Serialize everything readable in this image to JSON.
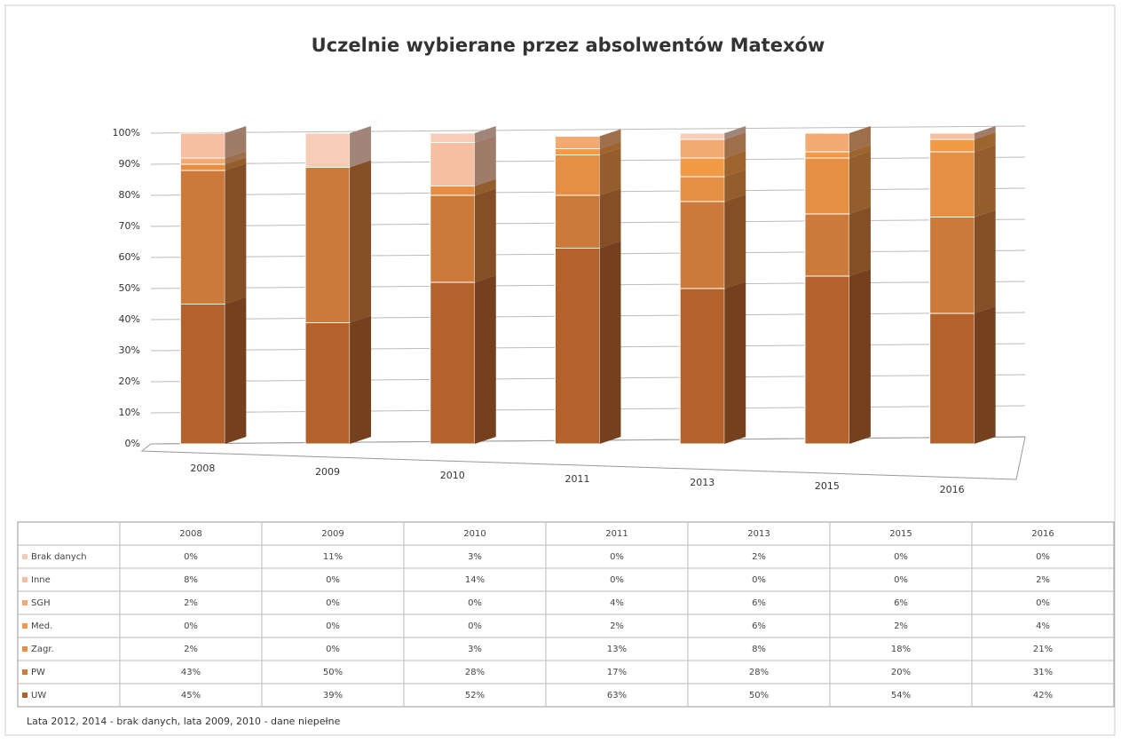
{
  "chart_data": {
    "type": "bar",
    "stacked": true,
    "title": "Uczelnie wybierane przez absolwentów Matexów",
    "categories": [
      "2008",
      "2009",
      "2010",
      "2011",
      "2013",
      "2015",
      "2016"
    ],
    "series": [
      {
        "name": "UW",
        "color": "#b4622c",
        "values": [
          45,
          39,
          52,
          63,
          50,
          54,
          42
        ],
        "value_labels": [
          "45%",
          "39%",
          "52%",
          "63%",
          "50%",
          "54%",
          "42%"
        ]
      },
      {
        "name": "PW",
        "color": "#cb7a3a",
        "values": [
          43,
          50,
          28,
          17,
          28,
          20,
          31
        ],
        "value_labels": [
          "43%",
          "50%",
          "28%",
          "17%",
          "28%",
          "20%",
          "31%"
        ]
      },
      {
        "name": "Zagr.",
        "color": "#e48f43",
        "values": [
          2,
          0,
          3,
          13,
          8,
          18,
          21
        ],
        "value_labels": [
          "2%",
          "0%",
          "3%",
          "13%",
          "8%",
          "18%",
          "21%"
        ]
      },
      {
        "name": "Med.",
        "color": "#f29a45",
        "values": [
          0,
          0,
          0,
          2,
          6,
          2,
          4
        ],
        "value_labels": [
          "0%",
          "0%",
          "0%",
          "2%",
          "6%",
          "2%",
          "4%"
        ]
      },
      {
        "name": "SGH",
        "color": "#f3aa72",
        "values": [
          2,
          0,
          0,
          4,
          6,
          6,
          0
        ],
        "value_labels": [
          "2%",
          "0%",
          "0%",
          "4%",
          "6%",
          "6%",
          "0%"
        ]
      },
      {
        "name": "Inne",
        "color": "#f5bfa2",
        "values": [
          8,
          0,
          14,
          0,
          0,
          0,
          2
        ],
        "value_labels": [
          "8%",
          "0%",
          "14%",
          "0%",
          "0%",
          "0%",
          "2%"
        ]
      },
      {
        "name": "Brak danych",
        "color": "#f7cdb8",
        "values": [
          0,
          11,
          3,
          0,
          2,
          0,
          0
        ],
        "value_labels": [
          "0%",
          "11%",
          "3%",
          "0%",
          "2%",
          "0%",
          "0%"
        ]
      }
    ],
    "ylim": [
      0,
      100
    ],
    "yticks": [
      {
        "value": 0,
        "label": "0%"
      },
      {
        "value": 10,
        "label": "10%"
      },
      {
        "value": 20,
        "label": "20%"
      },
      {
        "value": 30,
        "label": "30%"
      },
      {
        "value": 40,
        "label": "40%"
      },
      {
        "value": 50,
        "label": "50%"
      },
      {
        "value": 60,
        "label": "60%"
      },
      {
        "value": 70,
        "label": "70%"
      },
      {
        "value": 80,
        "label": "80%"
      },
      {
        "value": 90,
        "label": "90%"
      },
      {
        "value": 100,
        "label": "100%"
      }
    ],
    "grid": true,
    "note": "Lata 2012,  2014 - brak danych, lata 2009,  2010 - dane niepełne"
  }
}
